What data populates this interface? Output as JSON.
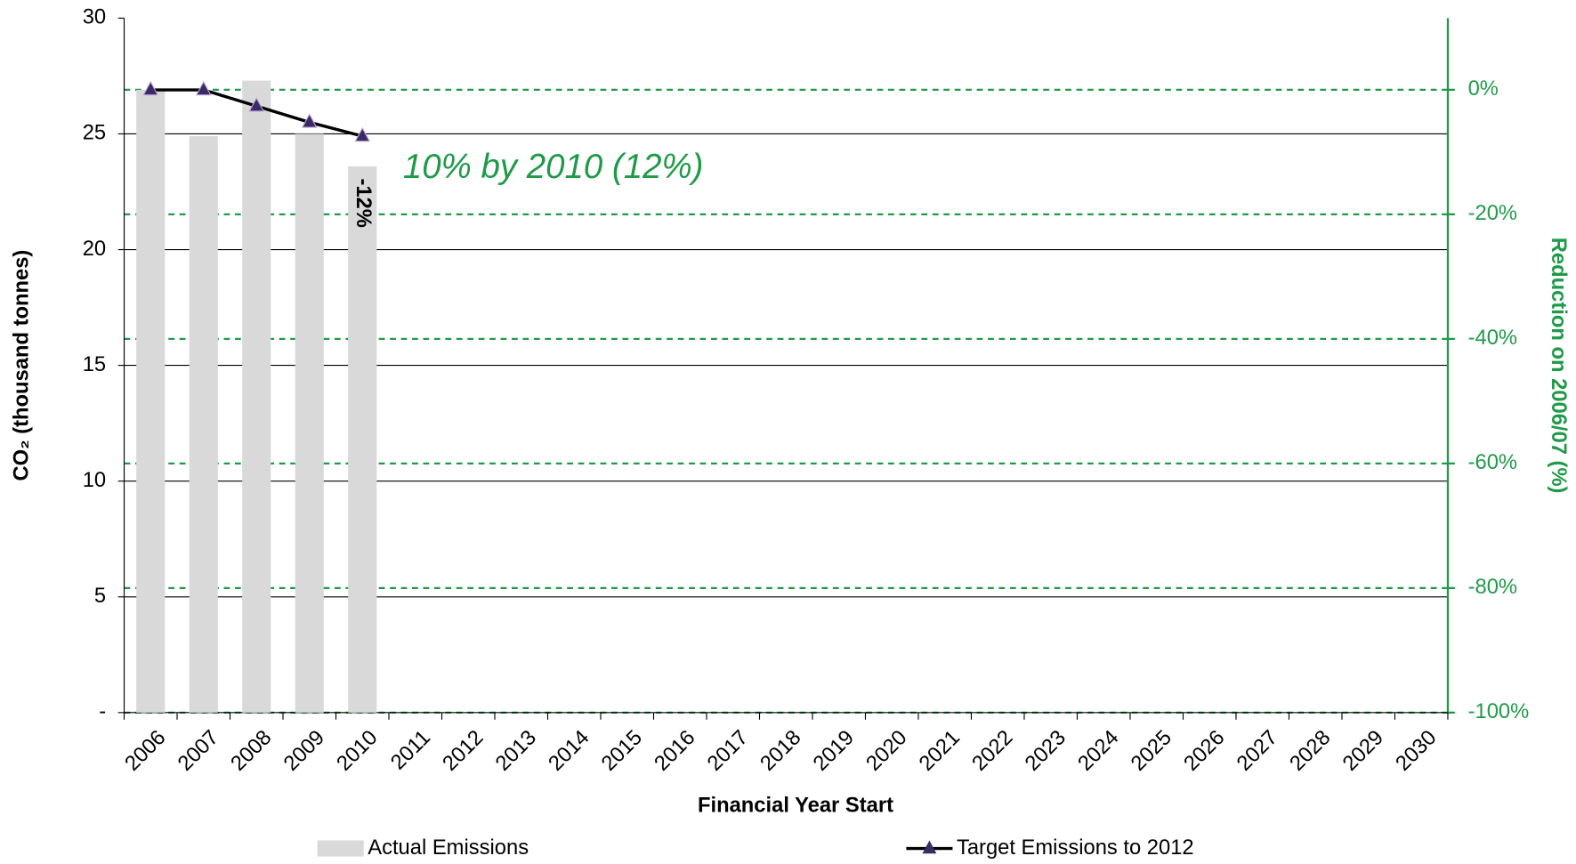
{
  "chart_data": {
    "type": "bar_line",
    "categories": [
      "2006",
      "2007",
      "2008",
      "2009",
      "2010",
      "2011",
      "2012",
      "2013",
      "2014",
      "2015",
      "2016",
      "2017",
      "2018",
      "2019",
      "2020",
      "2021",
      "2022",
      "2023",
      "2024",
      "2025",
      "2026",
      "2027",
      "2028",
      "2029",
      "2030"
    ],
    "series": [
      {
        "name": "Actual Emissions",
        "type": "bar",
        "color": "#d9d9d9",
        "values": [
          26.9,
          24.9,
          27.3,
          25.0,
          23.6,
          null,
          null,
          null,
          null,
          null,
          null,
          null,
          null,
          null,
          null,
          null,
          null,
          null,
          null,
          null,
          null,
          null,
          null,
          null,
          null
        ]
      },
      {
        "name": "Target Emissions to 2012",
        "type": "line",
        "color": "#000000",
        "marker_color": "#3b2a63",
        "values": [
          26.9,
          26.9,
          26.2,
          25.5,
          24.9,
          null,
          null,
          null,
          null,
          null,
          null,
          null,
          null,
          null,
          null,
          null,
          null,
          null,
          null,
          null,
          null,
          null,
          null,
          null,
          null
        ]
      }
    ],
    "ylabel": "CO₂ (thousand tonnes)",
    "xlabel": "Financial Year Start",
    "y2label": "Reduction on 2006/07 (%)",
    "ylim": [
      0,
      30
    ],
    "yticks": [
      {
        "value": 0,
        "label": "-"
      },
      5,
      10,
      15,
      20,
      25,
      30
    ],
    "y2lim": [
      -100,
      11.5
    ],
    "y2ticks": [
      {
        "value": -100,
        "label": "-100%"
      },
      {
        "value": -80,
        "label": "-80%"
      },
      {
        "value": -60,
        "label": "-60%"
      },
      {
        "value": -40,
        "label": "-40%"
      },
      {
        "value": -20,
        "label": "-20%"
      },
      {
        "value": 0,
        "label": "0%"
      }
    ],
    "y2_color": "#1f9a48",
    "grid": true,
    "legend": "bottom",
    "annotations": [
      {
        "text": "10% by 2010 (12%)"
      },
      {
        "text": "-12%",
        "category": "2010"
      }
    ]
  }
}
